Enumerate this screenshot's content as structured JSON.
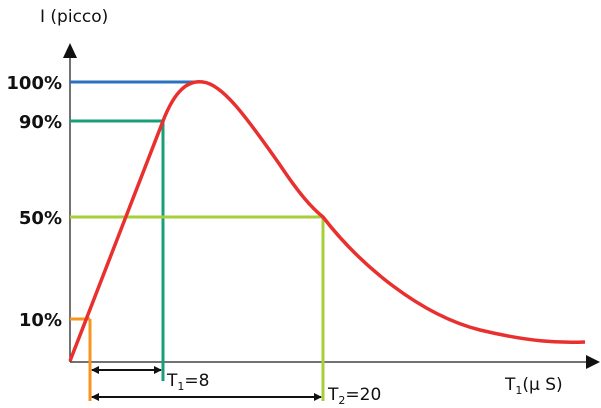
{
  "y_axis": {
    "title": "I (picco)",
    "ticks": [
      "100%",
      "90%",
      "50%",
      "10%"
    ]
  },
  "x_axis": {
    "title_main": "T",
    "title_sub": "1",
    "title_rest": "(μ S)"
  },
  "annotations": {
    "t1": {
      "main": "T",
      "sub": "1",
      "rest": "=8"
    },
    "t2": {
      "main": "T",
      "sub": "2",
      "rest": "=20"
    }
  },
  "colors": {
    "curve": "#e8302e",
    "level_100": "#2a72c0",
    "level_90": "#1a9e78",
    "level_50": "#a6cf3a",
    "level_10": "#f7941d",
    "axis": "#444444"
  }
}
